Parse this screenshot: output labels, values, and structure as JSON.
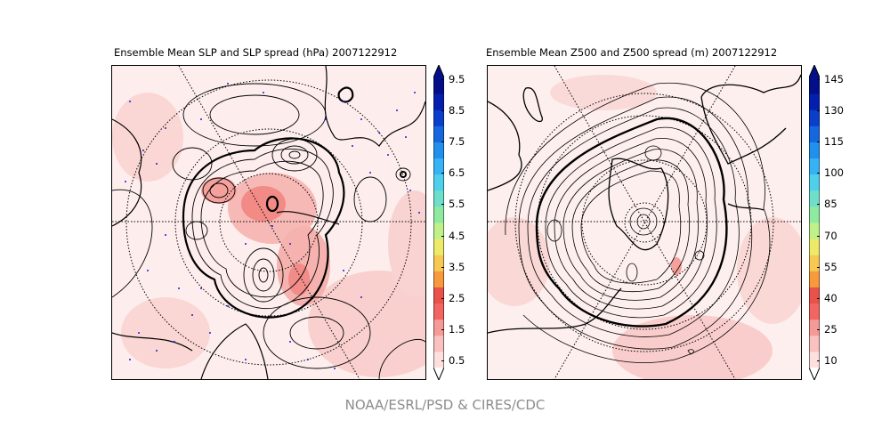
{
  "panels": [
    {
      "title": "Ensemble Mean SLP and SLP spread (hPa) 2007122912",
      "colorbar": {
        "ticks": [
          "9.5",
          "8.5",
          "7.5",
          "6.5",
          "5.5",
          "4.5",
          "3.5",
          "2.5",
          "1.5",
          "0.5"
        ],
        "colors": [
          "#fde0de",
          "#f9c1bf",
          "#f69a98",
          "#f26562",
          "#e8524a",
          "#f79a3e",
          "#f7c954",
          "#edea6a",
          "#bff08a",
          "#8eea9f",
          "#6fdfc9",
          "#4fd0ea",
          "#36b3f4",
          "#2190ec",
          "#1467dd",
          "#0a3fcb",
          "#041fae",
          "#020f88"
        ]
      }
    },
    {
      "title": "Ensemble Mean Z500 and Z500 spread (m) 2007122912",
      "colorbar": {
        "ticks": [
          "145",
          "130",
          "115",
          "100",
          "85",
          "70",
          "55",
          "40",
          "25",
          "10"
        ],
        "colors": [
          "#fde0de",
          "#f9c1bf",
          "#f69a98",
          "#f26562",
          "#e8524a",
          "#f79a3e",
          "#f7c954",
          "#edea6a",
          "#bff08a",
          "#8eea9f",
          "#6fdfc9",
          "#4fd0ea",
          "#36b3f4",
          "#2190ec",
          "#1467dd",
          "#0a3fcb",
          "#041fae",
          "#020f88"
        ]
      }
    }
  ],
  "footer": "NOAA/ESRL/PSD & CIRES/CDC"
}
